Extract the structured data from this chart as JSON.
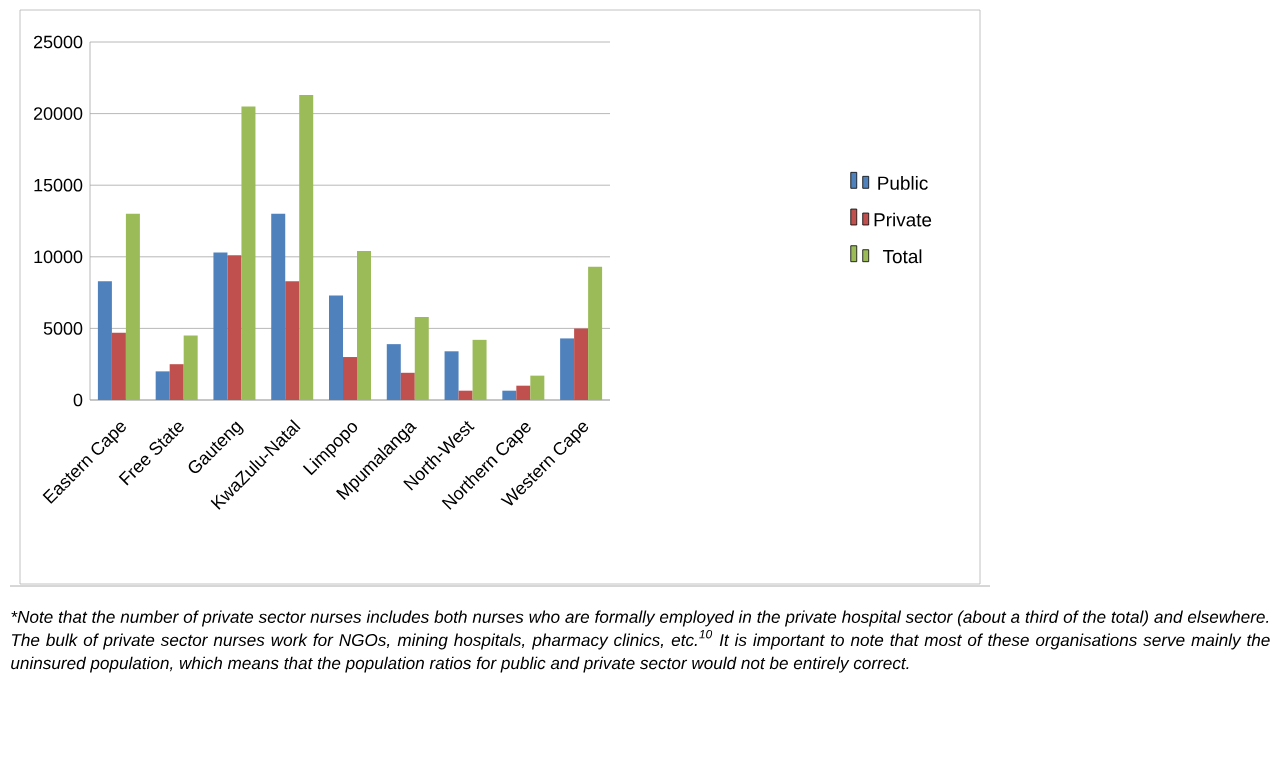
{
  "chart_data": {
    "type": "bar",
    "categories": [
      "Eastern Cape",
      "Free State",
      "Gauteng",
      "KwaZulu-Natal",
      "Limpopo",
      "Mpumalanga",
      "North-West",
      "Northern Cape",
      "Western Cape"
    ],
    "series": [
      {
        "name": "Public",
        "color": "#4f81bd",
        "values": [
          8300,
          2000,
          10300,
          13000,
          7300,
          3900,
          3400,
          650,
          4300
        ]
      },
      {
        "name": "Private",
        "color": "#c0504d",
        "values": [
          4700,
          2500,
          10100,
          8300,
          3000,
          1900,
          650,
          1000,
          5000
        ]
      },
      {
        "name": "Total",
        "color": "#9bbb59",
        "values": [
          13000,
          4500,
          20500,
          21300,
          10400,
          5800,
          4200,
          1700,
          9300
        ]
      }
    ],
    "ylim": [
      0,
      25000
    ],
    "yticks": [
      0,
      5000,
      10000,
      15000,
      20000,
      25000
    ],
    "grid": "y",
    "legend": "right",
    "annotations": [
      "*Note that the number of private sector nurses includes both nurses who are formally employed in the private hospital sector (about a third of the total) and elsewhere. The bulk of private sector nurses work for NGOs, mining hospitals, pharmacy clinics, etc.$^{10}$ It is important to note that most of these organisations serve mainly the uninsured population, which means that the population  ratios for public and private sector  would not be entirely correct."
    ]
  }
}
